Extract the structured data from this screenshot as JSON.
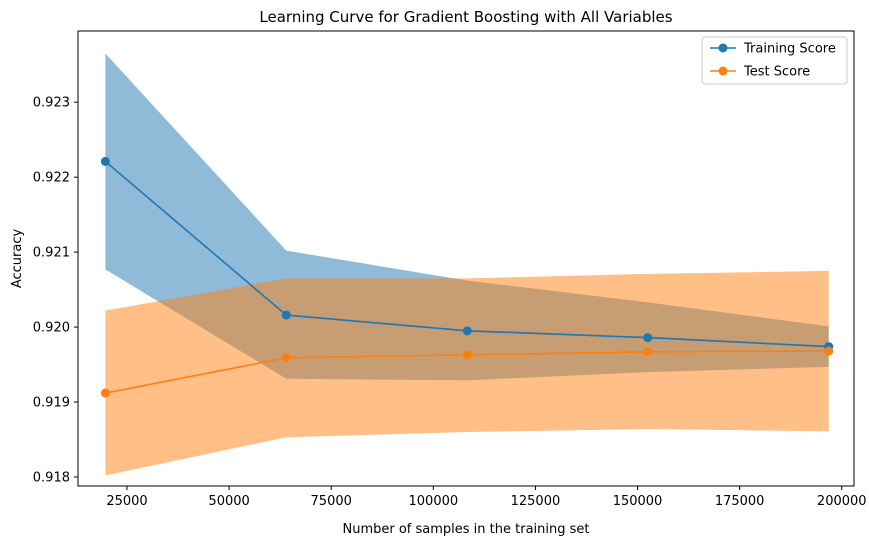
{
  "chart_data": {
    "type": "line",
    "title": "Learning Curve for Gradient Boosting with All Variables",
    "xlabel": "Number of samples in the training set",
    "ylabel": "Accuracy",
    "xlim": [
      13000,
      203000
    ],
    "ylim": [
      0.91788,
      0.92395
    ],
    "x_ticks": [
      25000,
      50000,
      75000,
      100000,
      125000,
      150000,
      175000,
      200000
    ],
    "y_ticks": [
      0.918,
      0.919,
      0.92,
      0.921,
      0.922,
      0.923
    ],
    "x_tick_labels": [
      "25000",
      "50000",
      "75000",
      "100000",
      "125000",
      "150000",
      "175000",
      "200000"
    ],
    "y_tick_labels": [
      "0.918",
      "0.919",
      "0.920",
      "0.921",
      "0.922",
      "0.923"
    ],
    "x": [
      19700,
      64000,
      108300,
      152500,
      196800
    ],
    "series": [
      {
        "name": "Training Score",
        "color": "#1f77b4",
        "band_color": "#1f77b4",
        "values": [
          0.92221,
          0.92016,
          0.91995,
          0.91986,
          0.91974
        ],
        "upper": [
          0.92365,
          0.92102,
          0.92062,
          0.92033,
          0.92001
        ],
        "lower": [
          0.92077,
          0.91931,
          0.91929,
          0.9194,
          0.91947
        ]
      },
      {
        "name": "Test Score",
        "color": "#ff7f0e",
        "band_color": "#ff7f0e",
        "values": [
          0.91912,
          0.91959,
          0.91963,
          0.91967,
          0.91968
        ],
        "upper": [
          0.92022,
          0.92065,
          0.92065,
          0.92071,
          0.92075
        ],
        "lower": [
          0.91802,
          0.91853,
          0.9186,
          0.91864,
          0.91861
        ]
      }
    ],
    "legend_position": "top-right",
    "grid": false
  }
}
